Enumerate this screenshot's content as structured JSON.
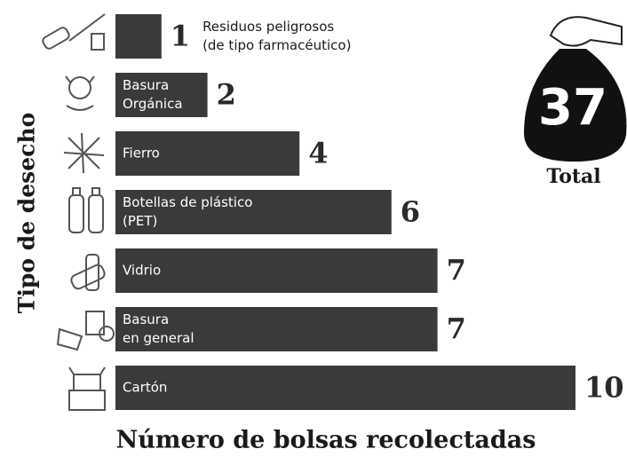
{
  "chart_data": {
    "type": "bar",
    "orientation": "horizontal",
    "x_label": "Número de bolsas recolectadas",
    "y_label": "Tipo de desecho",
    "categories": [
      [
        "Residuos peligrosos",
        "(de tipo farmacéutico)"
      ],
      [
        "Basura",
        "Orgánica"
      ],
      [
        "Fierro"
      ],
      [
        "Botellas de plástico",
        "(PET)"
      ],
      [
        "Vidrio"
      ],
      [
        "Basura",
        "en general"
      ],
      [
        "Cartón"
      ]
    ],
    "values": [
      1,
      2,
      4,
      6,
      7,
      7,
      10
    ],
    "color": "#3a3a3a",
    "total": {
      "label": "Total",
      "value": 37
    }
  }
}
